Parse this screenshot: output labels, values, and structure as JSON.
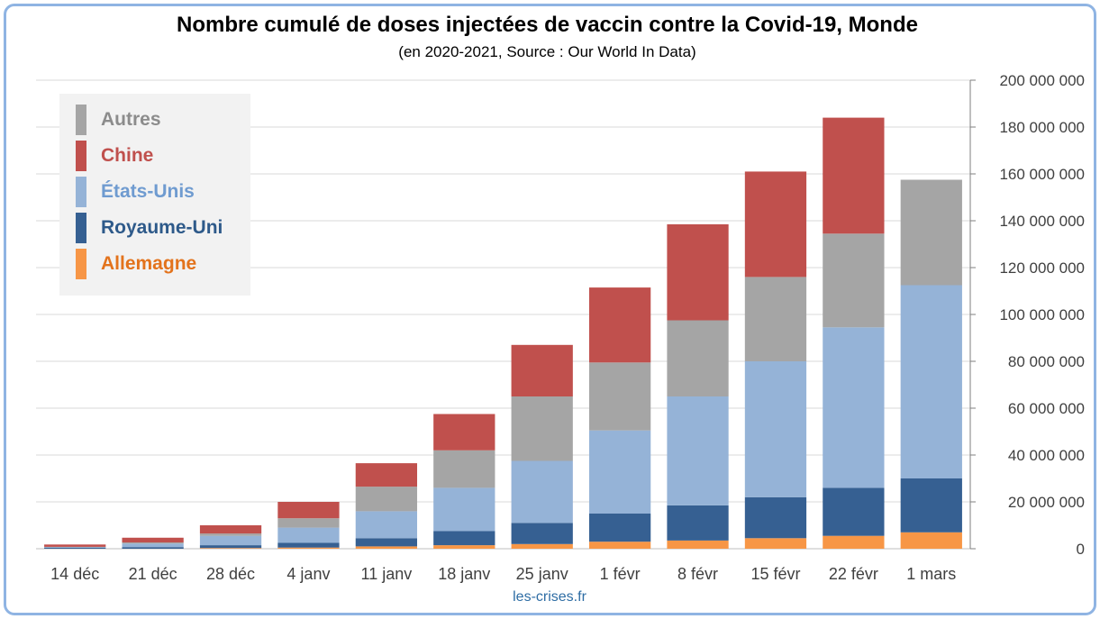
{
  "header": {
    "title": "Nombre cumulé de doses injectées de vaccin contre la Covid-19, Monde",
    "subtitle": "(en 2020-2021, Source : Our World In Data)"
  },
  "footer": {
    "source": "les-crises.fr"
  },
  "chart_data": {
    "type": "bar",
    "stacked": true,
    "title": "Nombre cumulé de doses injectées de vaccin contre la Covid-19, Monde",
    "subtitle": "(en 2020-2021, Source : Our World In Data)",
    "categories": [
      "14 déc",
      "21 déc",
      "28 déc",
      "4 janv",
      "11 janv",
      "18 janv",
      "25 janv",
      "1 févr",
      "8 févr",
      "15 févr",
      "22 févr",
      "1 mars"
    ],
    "series": [
      {
        "name": "Allemagne",
        "color": "#f79646",
        "values": [
          0,
          0,
          300000,
          500000,
          1000000,
          1500000,
          2000000,
          3000000,
          3500000,
          4500000,
          5500000,
          7000000
        ]
      },
      {
        "name": "Royaume-Uni",
        "color": "#366092",
        "values": [
          500000,
          700000,
          1200000,
          2000000,
          3500000,
          6000000,
          9000000,
          12000000,
          15000000,
          17500000,
          20500000,
          23000000
        ]
      },
      {
        "name": "États-Unis",
        "color": "#95b3d7",
        "values": [
          200000,
          1500000,
          4000000,
          6500000,
          11500000,
          18500000,
          26500000,
          35500000,
          46500000,
          58000000,
          68500000,
          82500000
        ]
      },
      {
        "name": "Autres",
        "color": "#a5a5a5",
        "values": [
          100000,
          500000,
          1000000,
          4000000,
          10500000,
          16000000,
          27500000,
          29000000,
          32500000,
          36000000,
          40000000,
          45000000
        ]
      },
      {
        "name": "Chine",
        "color": "#c0504d",
        "values": [
          1000000,
          2000000,
          3500000,
          7000000,
          10000000,
          15500000,
          22000000,
          32000000,
          41000000,
          45000000,
          49500000,
          0
        ]
      }
    ],
    "legend_order": [
      "Autres",
      "Chine",
      "États-Unis",
      "Royaume-Uni",
      "Allemagne"
    ],
    "legend_position": "top-left",
    "y_axis_position": "right",
    "ylim": [
      0,
      200000000
    ],
    "yticks": [
      0,
      20000000,
      40000000,
      60000000,
      80000000,
      100000000,
      120000000,
      140000000,
      160000000,
      180000000,
      200000000
    ],
    "ytick_labels": [
      "0",
      "20 000 000",
      "40 000 000",
      "60 000 000",
      "80 000 000",
      "100 000 000",
      "120 000 000",
      "140 000 000",
      "160 000 000",
      "180 000 000",
      "200 000 000"
    ],
    "grid": true,
    "xlabel": "",
    "ylabel": ""
  }
}
